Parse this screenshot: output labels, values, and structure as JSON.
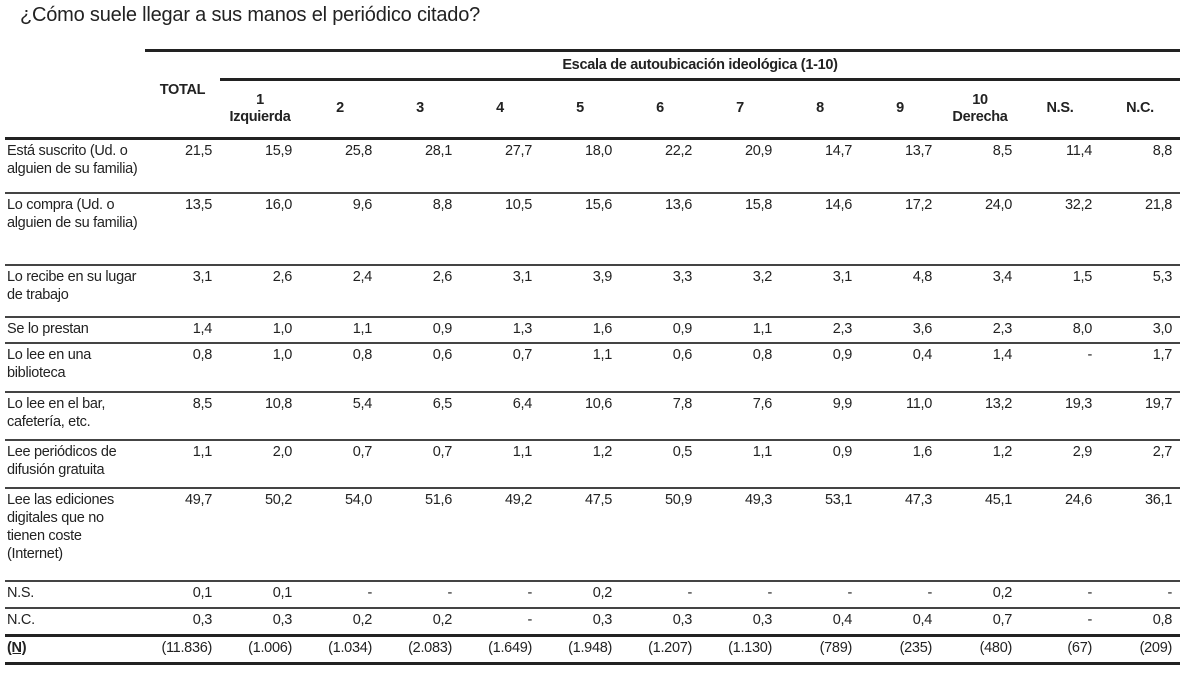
{
  "title": "¿Cómo suele llegar a sus manos el periódico citado?",
  "table": {
    "scale_header": "Escala de autoubicación ideológica (1-10)",
    "total_header": "TOTAL",
    "columns": [
      {
        "num": "1",
        "sub": "Izquierda"
      },
      {
        "num": "2",
        "sub": ""
      },
      {
        "num": "3",
        "sub": ""
      },
      {
        "num": "4",
        "sub": ""
      },
      {
        "num": "5",
        "sub": ""
      },
      {
        "num": "6",
        "sub": ""
      },
      {
        "num": "7",
        "sub": ""
      },
      {
        "num": "8",
        "sub": ""
      },
      {
        "num": "9",
        "sub": ""
      },
      {
        "num": "10",
        "sub": "Derecha"
      },
      {
        "num": "N.S.",
        "sub": ""
      },
      {
        "num": "N.C.",
        "sub": ""
      }
    ],
    "rows": [
      {
        "label": "Está suscrito (Ud. o alguien de su familia)",
        "values": [
          "21,5",
          "15,9",
          "25,8",
          "28,1",
          "27,7",
          "18,0",
          "22,2",
          "20,9",
          "14,7",
          "13,7",
          "8,5",
          "11,4",
          "8,8"
        ]
      },
      {
        "label": "Lo compra (Ud. o alguien de su familia)",
        "values": [
          "13,5",
          "16,0",
          "9,6",
          "8,8",
          "10,5",
          "15,6",
          "13,6",
          "15,8",
          "14,6",
          "17,2",
          "24,0",
          "32,2",
          "21,8"
        ]
      },
      {
        "label": "Lo recibe en su lugar de trabajo",
        "values": [
          "3,1",
          "2,6",
          "2,4",
          "2,6",
          "3,1",
          "3,9",
          "3,3",
          "3,2",
          "3,1",
          "4,8",
          "3,4",
          "1,5",
          "5,3"
        ]
      },
      {
        "label": "Se lo prestan",
        "values": [
          "1,4",
          "1,0",
          "1,1",
          "0,9",
          "1,3",
          "1,6",
          "0,9",
          "1,1",
          "2,3",
          "3,6",
          "2,3",
          "8,0",
          "3,0"
        ]
      },
      {
        "label": "Lo lee en una biblioteca",
        "values": [
          "0,8",
          "1,0",
          "0,8",
          "0,6",
          "0,7",
          "1,1",
          "0,6",
          "0,8",
          "0,9",
          "0,4",
          "1,4",
          "-",
          "1,7"
        ]
      },
      {
        "label": "Lo lee en el bar, cafetería, etc.",
        "values": [
          "8,5",
          "10,8",
          "5,4",
          "6,5",
          "6,4",
          "10,6",
          "7,8",
          "7,6",
          "9,9",
          "11,0",
          "13,2",
          "19,3",
          "19,7"
        ]
      },
      {
        "label": "Lee periódicos de difusión gratuita",
        "values": [
          "1,1",
          "2,0",
          "0,7",
          "0,7",
          "1,1",
          "1,2",
          "0,5",
          "1,1",
          "0,9",
          "1,6",
          "1,2",
          "2,9",
          "2,7"
        ]
      },
      {
        "label": "Lee las ediciones digitales que no tienen coste (Internet)",
        "values": [
          "49,7",
          "50,2",
          "54,0",
          "51,6",
          "49,2",
          "47,5",
          "50,9",
          "49,3",
          "53,1",
          "47,3",
          "45,1",
          "24,6",
          "36,1"
        ]
      },
      {
        "label": "N.S.",
        "values": [
          "0,1",
          "0,1",
          "-",
          "-",
          "-",
          "0,2",
          "-",
          "-",
          "-",
          "-",
          "0,2",
          "-",
          "-"
        ]
      },
      {
        "label": "N.C.",
        "values": [
          "0,3",
          "0,3",
          "0,2",
          "0,2",
          "-",
          "0,3",
          "0,3",
          "0,3",
          "0,4",
          "0,4",
          "0,7",
          "-",
          "0,8"
        ]
      },
      {
        "label": "(N)",
        "values": [
          "(11.836)",
          "(1.006)",
          "(1.034)",
          "(2.083)",
          "(1.649)",
          "(1.948)",
          "(1.207)",
          "(1.130)",
          "(789)",
          "(235)",
          "(480)",
          "(67)",
          "(209)"
        ]
      }
    ]
  }
}
